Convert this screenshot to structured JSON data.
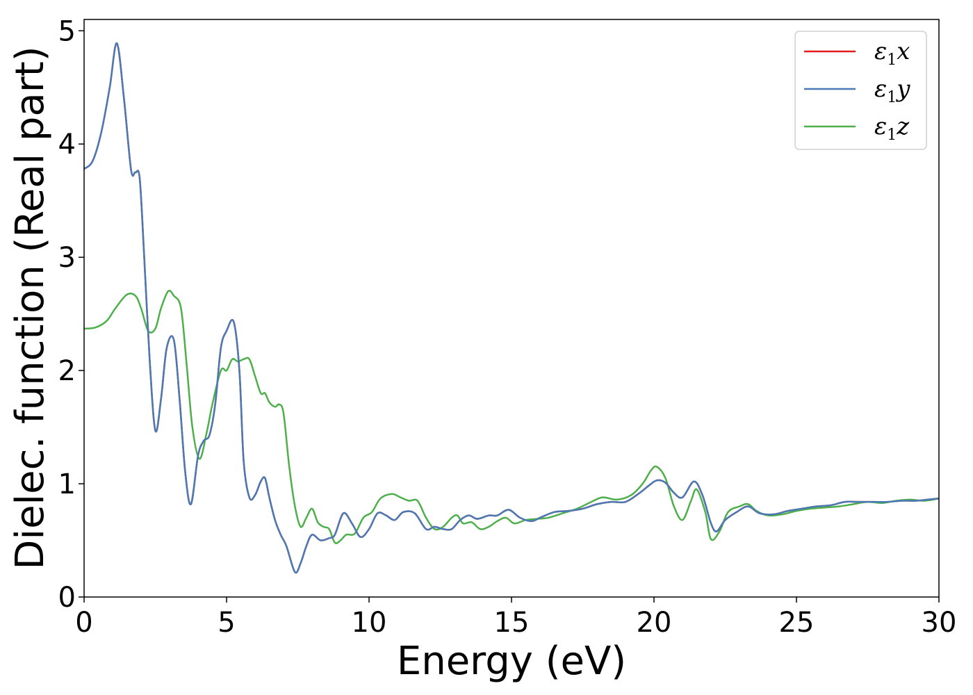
{
  "chart_data": {
    "type": "line",
    "title": "",
    "xlabel": "Energy (eV)",
    "ylabel": "Dielec. function (Real part)",
    "xlim": [
      0,
      30
    ],
    "ylim": [
      0,
      5.1
    ],
    "x_ticks": [
      "0",
      "5",
      "10",
      "15",
      "20",
      "25",
      "30"
    ],
    "y_ticks": [
      "0",
      "1",
      "2",
      "3",
      "4",
      "5"
    ],
    "grid": false,
    "legend_position": "top-right",
    "series": [
      {
        "name": "ε1x",
        "legend_main": "ε",
        "legend_sub": "1",
        "legend_var": "x",
        "color": "#e41a1c",
        "x": [
          0,
          0.3,
          0.6,
          0.9,
          1.15,
          1.4,
          1.65,
          1.8,
          1.95,
          2.1,
          2.3,
          2.5,
          2.7,
          2.9,
          3.15,
          3.35,
          3.55,
          3.75,
          4.0,
          4.2,
          4.4,
          4.6,
          4.8,
          5.0,
          5.25,
          5.45,
          5.6,
          5.8,
          6.0,
          6.2,
          6.35,
          6.5,
          6.7,
          6.9,
          7.1,
          7.4,
          7.6,
          7.8,
          8.0,
          8.3,
          8.6,
          8.8,
          9.1,
          9.4,
          9.7,
          10.0,
          10.3,
          10.6,
          10.9,
          11.2,
          11.6,
          12.0,
          12.3,
          12.6,
          12.9,
          13.2,
          13.5,
          13.8,
          14.2,
          14.5,
          14.9,
          15.3,
          15.7,
          16.0,
          16.5,
          17.0,
          17.5,
          18.0,
          18.5,
          19.0,
          19.5,
          19.8,
          20.1,
          20.4,
          20.7,
          21.0,
          21.4,
          21.7,
          22.0,
          22.2,
          22.5,
          22.9,
          23.3,
          23.7,
          24.2,
          24.7,
          25.2,
          25.7,
          26.2,
          26.7,
          27.2,
          27.7,
          28.2,
          28.7,
          29.2,
          29.6,
          30.0
        ],
        "values": [
          3.78,
          3.85,
          4.1,
          4.5,
          4.89,
          4.4,
          3.77,
          3.75,
          3.7,
          3.05,
          2.1,
          1.47,
          1.75,
          2.2,
          2.27,
          1.75,
          1.1,
          0.82,
          1.25,
          1.38,
          1.43,
          1.7,
          2.2,
          2.35,
          2.43,
          2.0,
          1.2,
          0.88,
          0.9,
          1.02,
          1.05,
          0.88,
          0.68,
          0.55,
          0.45,
          0.22,
          0.3,
          0.45,
          0.55,
          0.5,
          0.52,
          0.55,
          0.74,
          0.65,
          0.53,
          0.6,
          0.74,
          0.72,
          0.68,
          0.75,
          0.74,
          0.6,
          0.62,
          0.6,
          0.6,
          0.68,
          0.72,
          0.69,
          0.72,
          0.72,
          0.77,
          0.7,
          0.67,
          0.7,
          0.75,
          0.76,
          0.78,
          0.82,
          0.84,
          0.84,
          0.92,
          0.98,
          1.03,
          1.01,
          0.92,
          0.88,
          1.02,
          0.9,
          0.65,
          0.58,
          0.68,
          0.75,
          0.8,
          0.74,
          0.73,
          0.76,
          0.78,
          0.8,
          0.81,
          0.84,
          0.84,
          0.84,
          0.84,
          0.85,
          0.85,
          0.86,
          0.87
        ]
      },
      {
        "name": "ε1y",
        "legend_main": "ε",
        "legend_sub": "1",
        "legend_var": "y",
        "color": "#4a7ab5",
        "x": [
          0,
          0.3,
          0.6,
          0.9,
          1.15,
          1.4,
          1.65,
          1.8,
          1.95,
          2.1,
          2.3,
          2.5,
          2.7,
          2.9,
          3.15,
          3.35,
          3.55,
          3.75,
          4.0,
          4.2,
          4.4,
          4.6,
          4.8,
          5.0,
          5.25,
          5.45,
          5.6,
          5.8,
          6.0,
          6.2,
          6.35,
          6.5,
          6.7,
          6.9,
          7.1,
          7.4,
          7.6,
          7.8,
          8.0,
          8.3,
          8.6,
          8.8,
          9.1,
          9.4,
          9.7,
          10.0,
          10.3,
          10.6,
          10.9,
          11.2,
          11.6,
          12.0,
          12.3,
          12.6,
          12.9,
          13.2,
          13.5,
          13.8,
          14.2,
          14.5,
          14.9,
          15.3,
          15.7,
          16.0,
          16.5,
          17.0,
          17.5,
          18.0,
          18.5,
          19.0,
          19.5,
          19.8,
          20.1,
          20.4,
          20.7,
          21.0,
          21.4,
          21.7,
          22.0,
          22.2,
          22.5,
          22.9,
          23.3,
          23.7,
          24.2,
          24.7,
          25.2,
          25.7,
          26.2,
          26.7,
          27.2,
          27.7,
          28.2,
          28.7,
          29.2,
          29.6,
          30.0
        ],
        "values": [
          3.78,
          3.85,
          4.1,
          4.5,
          4.89,
          4.4,
          3.77,
          3.75,
          3.7,
          3.05,
          2.1,
          1.47,
          1.75,
          2.2,
          2.27,
          1.75,
          1.1,
          0.82,
          1.25,
          1.38,
          1.43,
          1.7,
          2.2,
          2.35,
          2.43,
          2.0,
          1.2,
          0.88,
          0.9,
          1.02,
          1.05,
          0.88,
          0.68,
          0.55,
          0.45,
          0.22,
          0.3,
          0.45,
          0.55,
          0.5,
          0.52,
          0.55,
          0.74,
          0.65,
          0.53,
          0.6,
          0.74,
          0.72,
          0.68,
          0.75,
          0.74,
          0.6,
          0.62,
          0.6,
          0.6,
          0.68,
          0.72,
          0.69,
          0.72,
          0.72,
          0.77,
          0.7,
          0.67,
          0.7,
          0.75,
          0.76,
          0.78,
          0.82,
          0.84,
          0.84,
          0.92,
          0.98,
          1.03,
          1.01,
          0.92,
          0.88,
          1.02,
          0.9,
          0.65,
          0.58,
          0.68,
          0.75,
          0.8,
          0.74,
          0.73,
          0.76,
          0.78,
          0.8,
          0.81,
          0.84,
          0.84,
          0.84,
          0.84,
          0.85,
          0.85,
          0.86,
          0.87
        ]
      },
      {
        "name": "ε1z",
        "legend_main": "ε",
        "legend_sub": "1",
        "legend_var": "z",
        "color": "#4daf4a",
        "x": [
          0,
          0.4,
          0.8,
          1.1,
          1.5,
          1.8,
          2.0,
          2.25,
          2.5,
          2.7,
          2.95,
          3.15,
          3.4,
          3.6,
          3.8,
          4.05,
          4.3,
          4.5,
          4.8,
          5.0,
          5.2,
          5.4,
          5.6,
          5.8,
          6.0,
          6.2,
          6.35,
          6.5,
          6.7,
          6.85,
          7.0,
          7.2,
          7.4,
          7.6,
          7.8,
          8.0,
          8.2,
          8.4,
          8.6,
          8.8,
          9.0,
          9.2,
          9.5,
          9.8,
          10.1,
          10.4,
          10.8,
          11.1,
          11.4,
          11.7,
          12.0,
          12.3,
          12.6,
          12.9,
          13.1,
          13.3,
          13.6,
          13.9,
          14.2,
          14.5,
          14.8,
          15.1,
          15.5,
          15.9,
          16.3,
          16.8,
          17.3,
          17.8,
          18.2,
          18.7,
          19.2,
          19.6,
          19.9,
          20.1,
          20.4,
          20.7,
          21.0,
          21.3,
          21.5,
          21.8,
          22.0,
          22.3,
          22.6,
          23.0,
          23.3,
          23.6,
          24.0,
          24.5,
          25.0,
          25.5,
          26.0,
          26.5,
          27.0,
          27.5,
          28.0,
          28.5,
          29.0,
          29.5,
          30.0
        ],
        "values": [
          2.37,
          2.38,
          2.44,
          2.55,
          2.67,
          2.66,
          2.55,
          2.35,
          2.37,
          2.55,
          2.7,
          2.66,
          2.55,
          2.05,
          1.5,
          1.22,
          1.45,
          1.7,
          2.0,
          2.0,
          2.1,
          2.08,
          2.1,
          2.1,
          1.95,
          1.8,
          1.8,
          1.72,
          1.68,
          1.7,
          1.62,
          1.15,
          0.8,
          0.62,
          0.7,
          0.78,
          0.66,
          0.62,
          0.6,
          0.48,
          0.5,
          0.55,
          0.56,
          0.7,
          0.75,
          0.87,
          0.91,
          0.88,
          0.85,
          0.85,
          0.7,
          0.6,
          0.62,
          0.7,
          0.72,
          0.65,
          0.66,
          0.6,
          0.62,
          0.67,
          0.7,
          0.65,
          0.68,
          0.69,
          0.7,
          0.74,
          0.78,
          0.84,
          0.88,
          0.86,
          0.9,
          1.0,
          1.12,
          1.15,
          1.05,
          0.8,
          0.68,
          0.85,
          0.95,
          0.75,
          0.51,
          0.58,
          0.75,
          0.8,
          0.82,
          0.76,
          0.72,
          0.73,
          0.76,
          0.78,
          0.79,
          0.8,
          0.82,
          0.84,
          0.83,
          0.85,
          0.86,
          0.85,
          0.87
        ]
      }
    ]
  }
}
